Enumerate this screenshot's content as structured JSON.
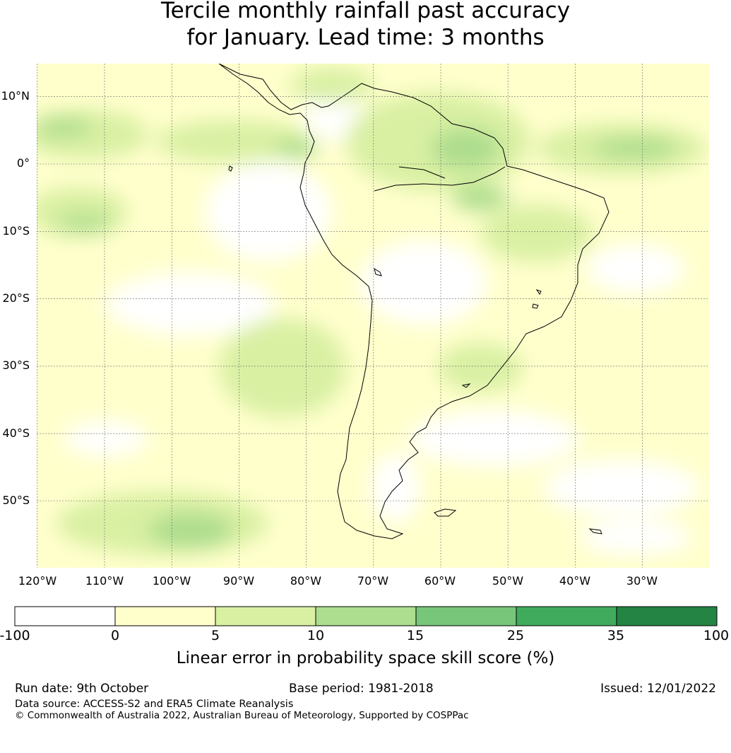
{
  "title": {
    "line1": "Tercile monthly rainfall past accuracy",
    "line2": "for January. Lead time: 3 months"
  },
  "map": {
    "region": "South America",
    "lat_labels": [
      "10°N",
      "0°",
      "10°S",
      "20°S",
      "30°S",
      "40°S",
      "50°S"
    ],
    "lon_labels": [
      "120°W",
      "110°W",
      "100°W",
      "90°W",
      "80°W",
      "70°W",
      "60°W",
      "50°W",
      "40°W",
      "30°W"
    ],
    "lat_values": [
      10,
      0,
      -10,
      -20,
      -30,
      -40,
      -50
    ],
    "lon_values": [
      -120,
      -110,
      -100,
      -90,
      -80,
      -70,
      -60,
      -50,
      -40,
      -30
    ],
    "extent": {
      "lon_min": -120,
      "lon_max": -20,
      "lat_min": -60,
      "lat_max": 15
    }
  },
  "colorbar": {
    "ticks": [
      "-100",
      "0",
      "5",
      "10",
      "15",
      "25",
      "35",
      "100"
    ],
    "colors": [
      "#ffffff",
      "#ffffcc",
      "#d9f0a3",
      "#addd8e",
      "#78c679",
      "#41ab5d",
      "#238443"
    ],
    "label": "Linear error in probability space skill score (%)"
  },
  "footer": {
    "run_date": "Run date: 9th October",
    "base_period": "Base period: 1981-2018",
    "issued": "Issued: 12/01/2022",
    "data_source": "Data source: ACCESS-S2 and ERA5 Climate Reanalysis",
    "copyright": "© Commonwealth of Australia 2022, Australian Bureau of Meteorology, Supported by COSPPac"
  }
}
